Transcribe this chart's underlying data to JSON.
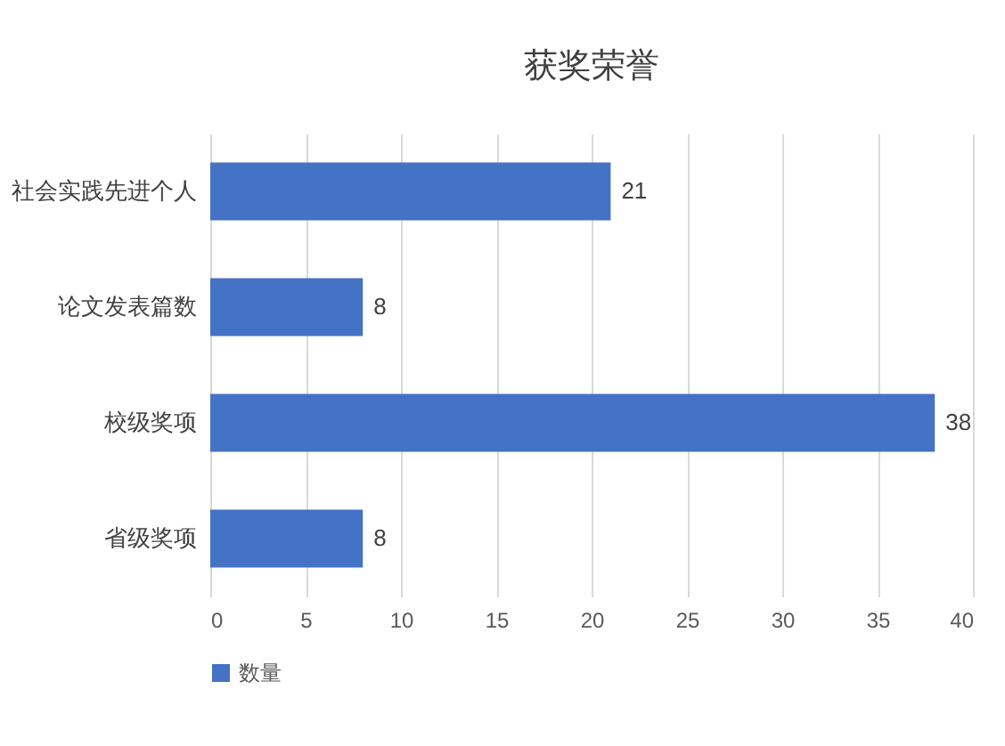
{
  "chart_data": {
    "type": "bar",
    "title": "获奖荣誉",
    "orientation": "horizontal",
    "categories": [
      "社会实践先进个人",
      "论文发表篇数",
      "校级奖项",
      "省级奖项"
    ],
    "series": [
      {
        "name": "数量",
        "color": "#4472c4",
        "values": [
          21,
          8,
          38,
          8
        ]
      }
    ],
    "xlim": [
      0,
      40
    ],
    "xticks": [
      0,
      5,
      10,
      15,
      20,
      25,
      30,
      35,
      40
    ],
    "grid": "x",
    "legend": "bottom",
    "data_labels": true
  }
}
